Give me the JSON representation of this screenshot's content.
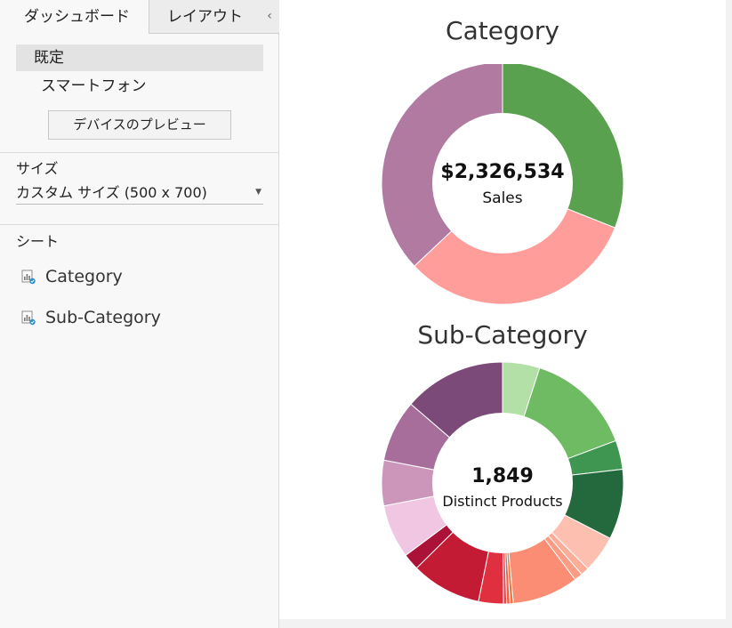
{
  "sidebar": {
    "tabs": [
      {
        "label": "ダッシュボード"
      },
      {
        "label": "レイアウト"
      }
    ],
    "collapse_glyph": "‹",
    "devices": [
      {
        "label": "既定"
      },
      {
        "label": "スマートフォン"
      }
    ],
    "preview_button": "デバイスのプレビュー",
    "size_label": "サイズ",
    "size_value": "カスタム サイズ (500 x 700)",
    "sheets_label": "シート",
    "sheets": [
      {
        "label": "Category",
        "icon": "worksheet-icon"
      },
      {
        "label": "Sub-Category",
        "icon": "worksheet-icon"
      }
    ]
  },
  "chart_data": [
    {
      "type": "pie",
      "subtype": "donut",
      "title": "Category",
      "center_value": "$2,326,534",
      "center_label": "Sales",
      "slices": [
        {
          "value": 0.31,
          "color": "#59a14f"
        },
        {
          "value": 0.32,
          "color": "#ff9d9a"
        },
        {
          "value": 0.37,
          "color": "#b07aa1"
        }
      ]
    },
    {
      "type": "pie",
      "subtype": "donut",
      "title": "Sub-Category",
      "center_value": "1,849",
      "center_label": "Distinct Products",
      "slices": [
        {
          "value": 0.045,
          "color": "#b3e0a6"
        },
        {
          "value": 0.13,
          "color": "#6fbb63"
        },
        {
          "value": 0.035,
          "color": "#3f9650"
        },
        {
          "value": 0.085,
          "color": "#24693d"
        },
        {
          "value": 0.045,
          "color": "#fdbfaf"
        },
        {
          "value": 0.01,
          "color": "#fcad98"
        },
        {
          "value": 0.01,
          "color": "#fb9d85"
        },
        {
          "value": 0.08,
          "color": "#fa8d73"
        },
        {
          "value": 0.004,
          "color": "#f2743f"
        },
        {
          "value": 0.004,
          "color": "#ee6048"
        },
        {
          "value": 0.004,
          "color": "#e8474e"
        },
        {
          "value": 0.03,
          "color": "#e03040"
        },
        {
          "value": 0.085,
          "color": "#c41b34"
        },
        {
          "value": 0.02,
          "color": "#ab1238"
        },
        {
          "value": 0.065,
          "color": "#f0c6e2"
        },
        {
          "value": 0.055,
          "color": "#cc96bb"
        },
        {
          "value": 0.075,
          "color": "#a76d9b"
        },
        {
          "value": 0.124,
          "color": "#7b4a78"
        }
      ]
    }
  ]
}
